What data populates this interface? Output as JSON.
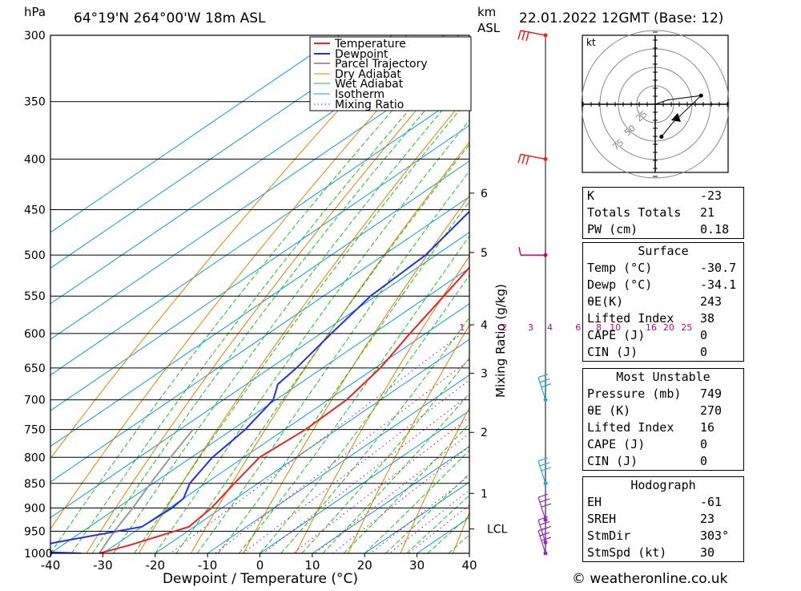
{
  "header": {
    "hpa_unit": "hPa",
    "location": "64°19'N  264°00'W  18m  ASL",
    "km_unit": "km",
    "asl_unit": "ASL",
    "datetime": "22.01.2022  12GMT  (Base: 12)"
  },
  "footer": {
    "credit": "© weatheronline.co.uk"
  },
  "chart_data": {
    "type": "skew-t",
    "xlabel": "Dewpoint / Temperature (°C)",
    "mixing_ratio_label": "Mixing Ratio (g/kg)",
    "x_ticks": [
      -40,
      -30,
      -20,
      -10,
      0,
      10,
      20,
      30,
      40
    ],
    "pressure_ticks": [
      300,
      350,
      400,
      450,
      500,
      550,
      600,
      650,
      700,
      750,
      800,
      850,
      900,
      950,
      1000
    ],
    "km_ticks": [
      {
        "label": "6",
        "p": 433
      },
      {
        "label": "5",
        "p": 497
      },
      {
        "label": "4",
        "p": 588
      },
      {
        "label": "3",
        "p": 658
      },
      {
        "label": "2",
        "p": 755
      },
      {
        "label": "1",
        "p": 870
      },
      {
        "label": "LCL",
        "p": 945
      }
    ],
    "mixing_ratio_values": [
      "1",
      "2",
      "3",
      "4",
      "6",
      "8",
      "10",
      "16",
      "20",
      "25"
    ],
    "legend": [
      "Temperature",
      "Dewpoint",
      "Parcel Trajectory",
      "Dry Adiabat",
      "Wet Adiabat",
      "Isotherm",
      "Mixing Ratio"
    ],
    "colors": {
      "temperature": "#ee2222",
      "dewpoint": "#2233dd",
      "parcel": "#999999",
      "dry_adiabat": "#e58000",
      "wet_adiabat": "#22bb22",
      "isotherm": "#1199dd",
      "mixing_ratio": "#cc0077",
      "wind": "#ee2222"
    },
    "temperature": [
      {
        "p": 300,
        "t": -50
      },
      {
        "p": 350,
        "t": -48.5
      },
      {
        "p": 370,
        "t": -48
      },
      {
        "p": 385,
        "t": -52
      },
      {
        "p": 400,
        "t": -52.5
      },
      {
        "p": 450,
        "t": -47
      },
      {
        "p": 500,
        "t": -41.5
      },
      {
        "p": 550,
        "t": -37
      },
      {
        "p": 600,
        "t": -33
      },
      {
        "p": 650,
        "t": -29
      },
      {
        "p": 700,
        "t": -26.5
      },
      {
        "p": 750,
        "t": -26
      },
      {
        "p": 800,
        "t": -27
      },
      {
        "p": 850,
        "t": -24.5
      },
      {
        "p": 900,
        "t": -22
      },
      {
        "p": 940,
        "t": -21
      },
      {
        "p": 980,
        "t": -27
      },
      {
        "p": 1000,
        "t": -30.7
      }
    ],
    "dewpoint": [
      {
        "p": 300,
        "t": -59
      },
      {
        "p": 350,
        "t": -58.5
      },
      {
        "p": 375,
        "t": -58
      },
      {
        "p": 385,
        "t": -60
      },
      {
        "p": 400,
        "t": -60
      },
      {
        "p": 450,
        "t": -56
      },
      {
        "p": 500,
        "t": -52
      },
      {
        "p": 550,
        "t": -51
      },
      {
        "p": 600,
        "t": -48
      },
      {
        "p": 650,
        "t": -45
      },
      {
        "p": 675,
        "t": -44
      },
      {
        "p": 700,
        "t": -40.5
      },
      {
        "p": 750,
        "t": -37.5
      },
      {
        "p": 800,
        "t": -36
      },
      {
        "p": 850,
        "t": -33
      },
      {
        "p": 880,
        "t": -30
      },
      {
        "p": 900,
        "t": -29.5
      },
      {
        "p": 940,
        "t": -30
      },
      {
        "p": 975,
        "t": -42
      },
      {
        "p": 995,
        "t": -48
      },
      {
        "p": 1000,
        "t": -34.1
      }
    ],
    "parcel": [
      {
        "p": 1000,
        "t": -30.7
      },
      {
        "p": 950,
        "t": -34
      },
      {
        "p": 900,
        "t": -37
      },
      {
        "p": 850,
        "t": -40.5
      },
      {
        "p": 800,
        "t": -44
      },
      {
        "p": 750,
        "t": -47.5
      }
    ],
    "wind_barbs": [
      {
        "p": 300,
        "kind": "flag"
      },
      {
        "p": 400,
        "kind": "flag"
      },
      {
        "p": 500,
        "kind": "half"
      },
      {
        "p": 700,
        "kind": "lines"
      },
      {
        "p": 850,
        "kind": "lines"
      },
      {
        "p": 925,
        "kind": "lines"
      },
      {
        "p": 975,
        "kind": "lines"
      },
      {
        "p": 1000,
        "kind": "lines"
      }
    ]
  },
  "hodograph": {
    "unit": "kt",
    "ring_labels": [
      "25",
      "50",
      "75"
    ],
    "points": [
      [
        0,
        0
      ],
      [
        6,
        -4
      ],
      [
        22,
        -8
      ],
      [
        8,
        18
      ],
      [
        3,
        30
      ]
    ]
  },
  "indices": {
    "general": [
      {
        "label": "K",
        "value": "-23"
      },
      {
        "label": "Totals Totals",
        "value": "21"
      },
      {
        "label": "PW (cm)",
        "value": "0.18"
      }
    ],
    "surface": {
      "title": "Surface",
      "rows": [
        {
          "label": "Temp (°C)",
          "value": "-30.7"
        },
        {
          "label": "Dewp (°C)",
          "value": "-34.1"
        },
        {
          "label": "θE(K)",
          "value": "243"
        },
        {
          "label": "Lifted Index",
          "value": "38"
        },
        {
          "label": "CAPE (J)",
          "value": "0"
        },
        {
          "label": "CIN (J)",
          "value": "0"
        }
      ]
    },
    "most_unstable": {
      "title": "Most Unstable",
      "rows": [
        {
          "label": "Pressure (mb)",
          "value": "749"
        },
        {
          "label": "θE (K)",
          "value": "270"
        },
        {
          "label": "Lifted Index",
          "value": "16"
        },
        {
          "label": "CAPE (J)",
          "value": "0"
        },
        {
          "label": "CIN (J)",
          "value": "0"
        }
      ]
    },
    "hodograph": {
      "title": "Hodograph",
      "rows": [
        {
          "label": "EH",
          "value": "-61"
        },
        {
          "label": "SREH",
          "value": "23"
        },
        {
          "label": "StmDir",
          "value": "303°"
        },
        {
          "label": "StmSpd (kt)",
          "value": "30"
        }
      ]
    }
  }
}
